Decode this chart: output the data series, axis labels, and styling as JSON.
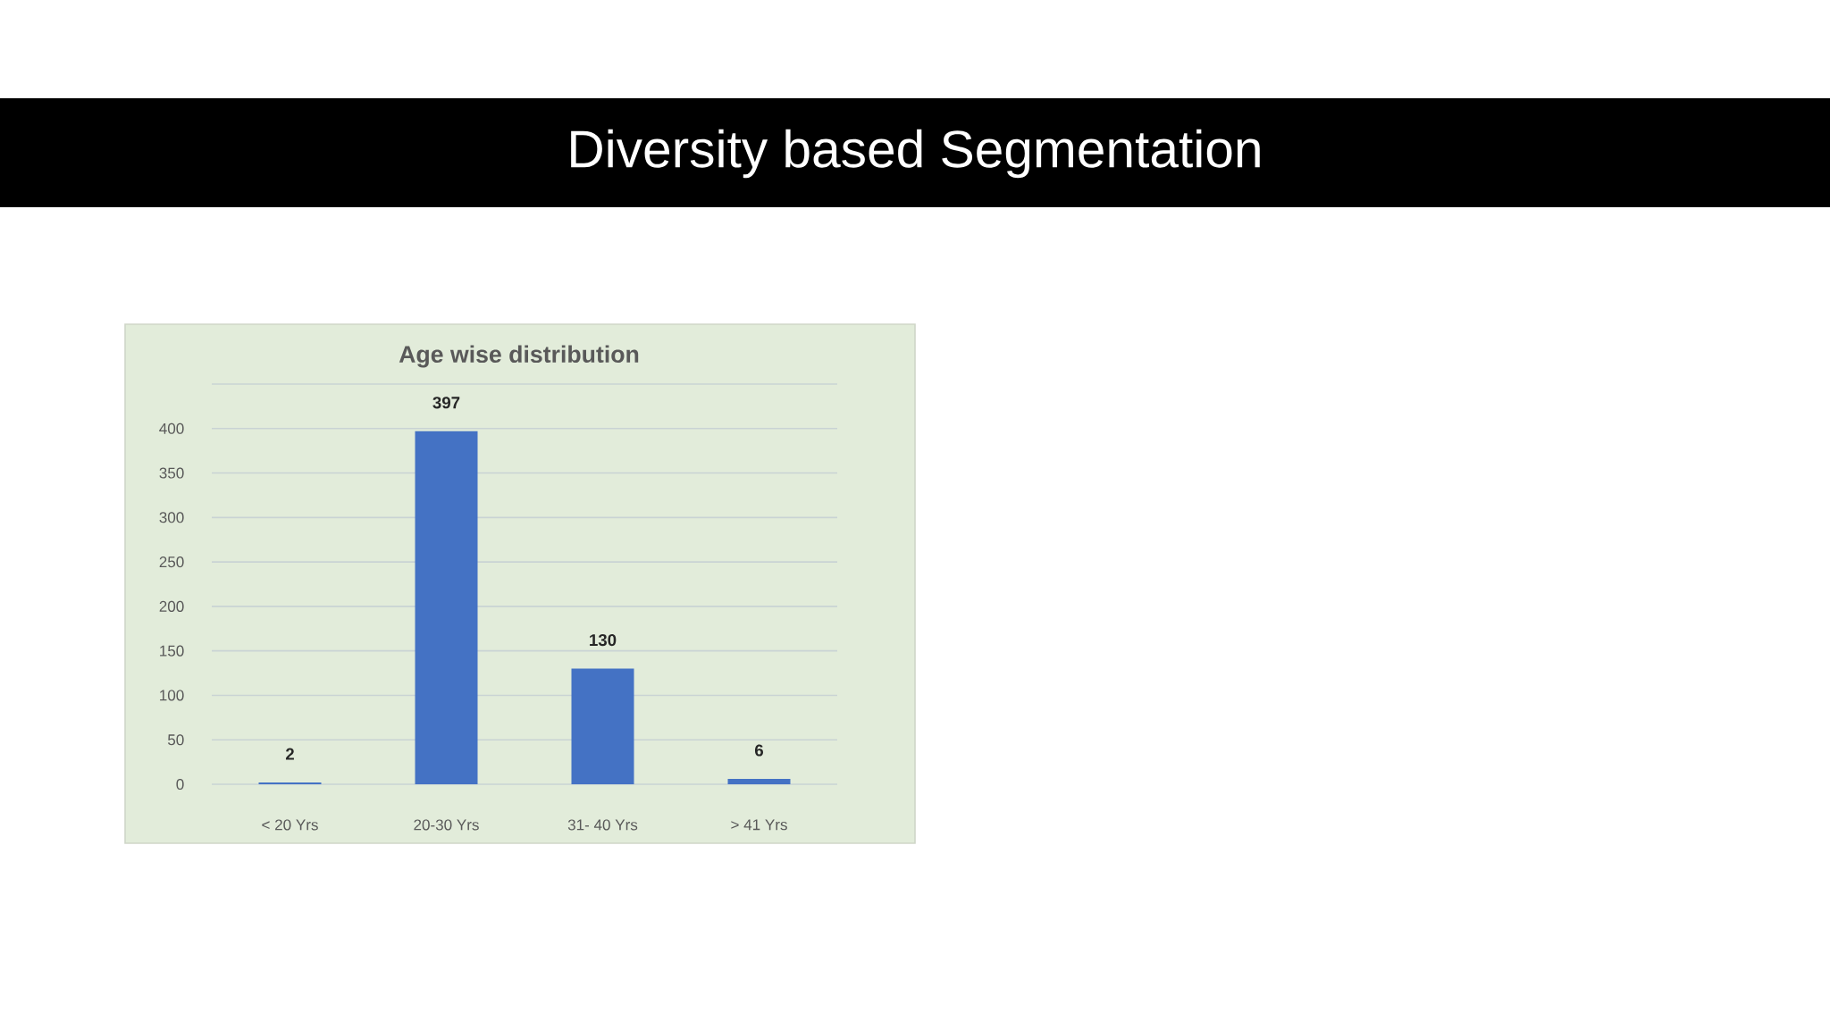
{
  "chart_data": {
    "type": "bar",
    "title": "Diversity based Segmentation",
    "subtitle": "Age wise distribution",
    "categories": [
      "< 20 Yrs",
      "20-30 Yrs",
      "31- 40 Yrs",
      "> 41 Yrs"
    ],
    "values": [
      2,
      397,
      130,
      6
    ],
    "color": "#4472c4",
    "ylim": [
      0,
      450
    ],
    "yticks": [
      0,
      50,
      100,
      150,
      200,
      250,
      300,
      350,
      400,
      {
        "value": 450,
        "label": null
      }
    ],
    "grid": "y",
    "data_labels": true
  }
}
